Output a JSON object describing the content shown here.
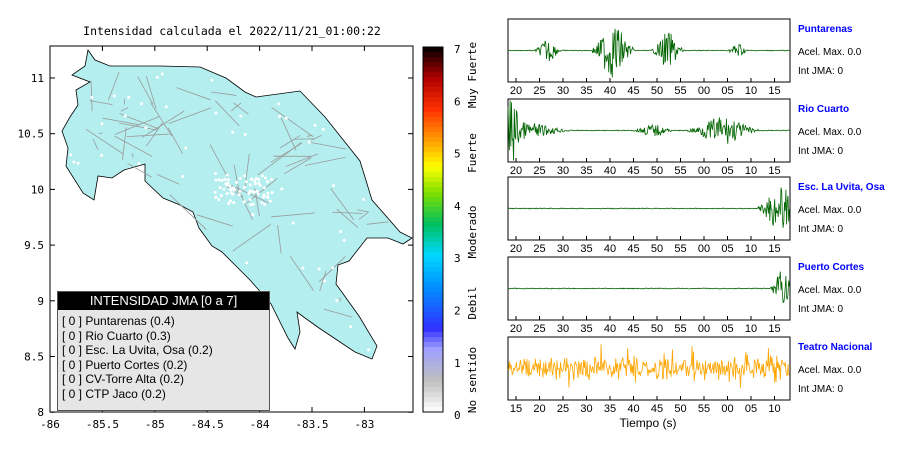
{
  "map": {
    "title": "Intensidad calculada el 2022/11/21_01:00:22",
    "y_ticks": [
      "11",
      "10.5",
      "10",
      "9.5",
      "9",
      "8.5",
      "8"
    ],
    "x_ticks": [
      "-86",
      "-85.5",
      "-85",
      "-84.5",
      "-84",
      "-83.5",
      "-83"
    ],
    "land_color": "#b4eeee",
    "colorbar": {
      "ticks": [
        "7",
        "6",
        "5",
        "4",
        "3",
        "2",
        "1",
        "0"
      ],
      "labels": [
        "Muy Fuerte",
        "Fuerte",
        "Moderado",
        "Debil",
        "No sentido"
      ]
    },
    "legend": {
      "header": "INTENSIDAD JMA [0 a 7]",
      "rows": [
        "[ 0 ]  Puntarenas (0.4)",
        "[ 0 ]  Rio Cuarto (0.3)",
        "[ 0 ]  Esc. La Uvita, Osa (0.2)",
        "[ 0 ]  Puerto Cortes (0.2)",
        "[ 0 ]  CV-Torre Alta (0.2)",
        "[ 0 ]  CTP Jaco (0.2)"
      ]
    }
  },
  "waveforms": [
    {
      "station": "Puntarenas",
      "accel": "Acel. Max. 0.0",
      "jma": "Int JMA: 0",
      "color": "#006400",
      "ticks": [
        "20",
        "25",
        "30",
        "35",
        "40",
        "45",
        "50",
        "55",
        "00",
        "05",
        "10",
        "15"
      ]
    },
    {
      "station": "Rio Cuarto",
      "accel": "Acel. Max. 0.0",
      "jma": "Int JMA: 0",
      "color": "#006400",
      "ticks": [
        "20",
        "25",
        "30",
        "35",
        "40",
        "45",
        "50",
        "55",
        "00",
        "05",
        "10",
        "15"
      ]
    },
    {
      "station": "Esc. La Uvita, Osa",
      "accel": "Acel. Max. 0.0",
      "jma": "Int JMA: 0",
      "color": "#006400",
      "ticks": [
        "20",
        "25",
        "30",
        "35",
        "40",
        "45",
        "50",
        "55",
        "00",
        "05",
        "10",
        "15"
      ]
    },
    {
      "station": "Puerto Cortes",
      "accel": "Acel. Max. 0.0",
      "jma": "Int JMA: 0",
      "color": "#006400",
      "ticks": [
        "20",
        "25",
        "30",
        "35",
        "40",
        "45",
        "50",
        "55",
        "00",
        "05",
        "10",
        "15"
      ]
    },
    {
      "station": "Teatro Nacional",
      "accel": "Acel. Max. 0.0",
      "jma": "Int JMA: 0",
      "color": "#ffa500",
      "ticks": [
        "15",
        "20",
        "25",
        "30",
        "35",
        "40",
        "45",
        "50",
        "55",
        "00",
        "05",
        "10"
      ]
    }
  ],
  "time_axis_label": "Tiempo (s)",
  "station_label_color": "#0000ff"
}
